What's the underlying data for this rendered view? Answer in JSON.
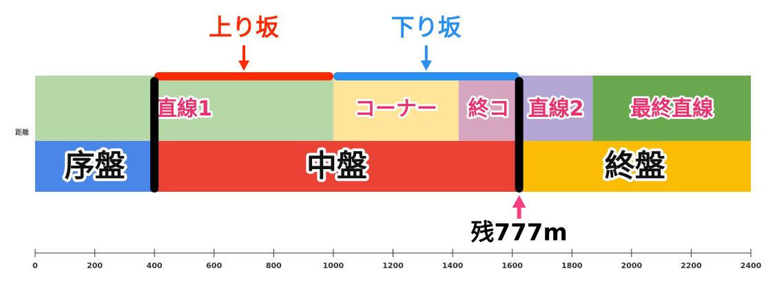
{
  "chart_data": {
    "type": "timeline",
    "ylabel": "距離",
    "xlim": [
      0,
      2400
    ],
    "xticks": [
      0,
      200,
      400,
      600,
      800,
      1000,
      1200,
      1400,
      1600,
      1800,
      2000,
      2200,
      2400
    ],
    "rows": [
      {
        "label_color": "#e8336e",
        "segments": [
          {
            "label": "直線1",
            "start": 0,
            "end": 1000,
            "color": "#b6d7a8"
          },
          {
            "label": "コーナー",
            "start": 1000,
            "end": 1420,
            "color": "#ffe599"
          },
          {
            "label": "終コ",
            "start": 1420,
            "end": 1623,
            "color": "#d5a6bd"
          },
          {
            "label": "直線2",
            "start": 1623,
            "end": 1870,
            "color": "#b4a7d6"
          },
          {
            "label": "最終直線",
            "start": 1870,
            "end": 2400,
            "color": "#6aa84f"
          }
        ]
      },
      {
        "label_color": "#111111",
        "segments": [
          {
            "label": "序盤",
            "start": 0,
            "end": 400,
            "color": "#4a86e8"
          },
          {
            "label": "中盤",
            "start": 400,
            "end": 1623,
            "color": "#ea4335"
          },
          {
            "label": "終盤",
            "start": 1623,
            "end": 2400,
            "color": "#fbbc04"
          }
        ]
      }
    ],
    "slopes": [
      {
        "label": "上り坂",
        "start": 400,
        "end": 1000,
        "color": "#ff2a00"
      },
      {
        "label": "下り坂",
        "start": 1000,
        "end": 1623,
        "color": "#2a8ff0"
      }
    ],
    "markers": [
      400,
      1623
    ],
    "annotation": {
      "label": "残777m",
      "x": 1623,
      "color": "#ff3d7f"
    }
  }
}
